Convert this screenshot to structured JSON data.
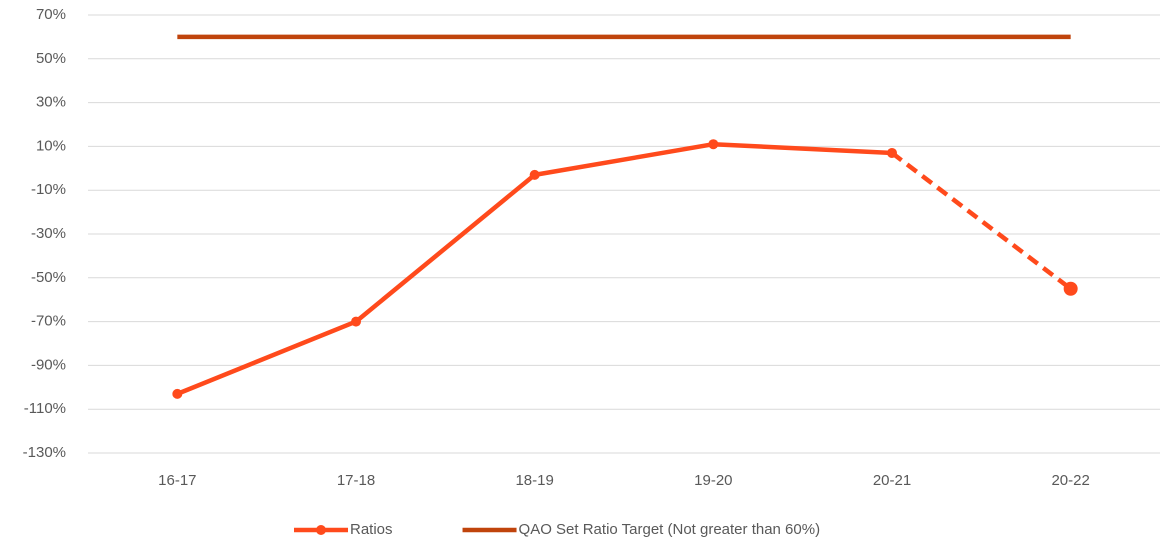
{
  "chart_data": {
    "type": "line",
    "categories": [
      "16-17",
      "17-18",
      "18-19",
      "19-20",
      "20-21",
      "20-22"
    ],
    "series": [
      {
        "name": "Ratios",
        "color": "#ff4a1c",
        "values": [
          -103,
          -70,
          -3,
          11,
          7,
          -55
        ],
        "markers": true,
        "dashed_last_segment": true
      },
      {
        "name": "QAO Set Ratio Target (Not greater than 60%)",
        "color": "#c0440c",
        "values": [
          60,
          60,
          60,
          60,
          60,
          60
        ],
        "markers": false
      }
    ],
    "ylim": [
      -130,
      70
    ],
    "yticks": [
      {
        "value": -130,
        "label": "-130%"
      },
      {
        "value": -110,
        "label": "-110%"
      },
      {
        "value": -90,
        "label": "-90%"
      },
      {
        "value": -70,
        "label": "-70%"
      },
      {
        "value": -50,
        "label": "-50%"
      },
      {
        "value": -30,
        "label": "-30%"
      },
      {
        "value": -10,
        "label": "-10%"
      },
      {
        "value": 10,
        "label": "10%"
      },
      {
        "value": 30,
        "label": "30%"
      },
      {
        "value": 50,
        "label": "50%"
      },
      {
        "value": 70,
        "label": "70%"
      }
    ],
    "grid": true,
    "legend": "bottom"
  }
}
